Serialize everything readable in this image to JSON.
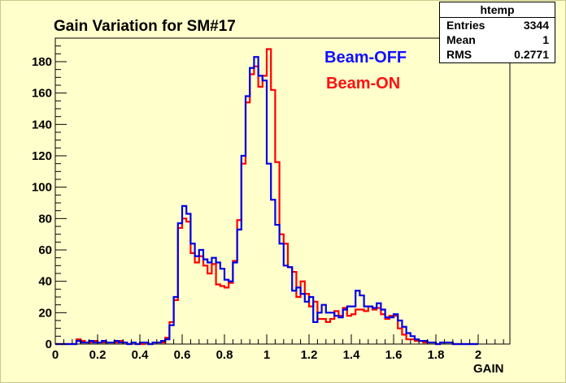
{
  "chart_data": {
    "type": "histogram",
    "title": "Gain Variation for SM#17",
    "xlabel": "GAIN",
    "ylabel": "",
    "xlim": [
      0.0,
      2.15
    ],
    "ylim": [
      0,
      195
    ],
    "x_ticks": [
      0,
      0.2,
      0.4,
      0.6,
      0.8,
      1,
      1.2,
      1.4,
      1.6,
      1.8,
      2
    ],
    "x_tick_labels": [
      "0",
      "0.2",
      "0.4",
      "0.6",
      "0.8",
      "1",
      "1.2",
      "1.4",
      "1.6",
      "1.8",
      "2"
    ],
    "y_ticks": [
      0,
      20,
      40,
      60,
      80,
      100,
      120,
      140,
      160,
      180
    ],
    "y_tick_labels": [
      "0",
      "20",
      "40",
      "60",
      "80",
      "100",
      "120",
      "140",
      "160",
      "180"
    ],
    "bin_start": 0.0,
    "bin_width": 0.02,
    "legend_position": "top-right",
    "series": [
      {
        "name": "Beam-OFF",
        "color": "#0000e6",
        "values": [
          0,
          0,
          0,
          0,
          0,
          2,
          1,
          1,
          2,
          1,
          1,
          2,
          1,
          1,
          2,
          1,
          1,
          0,
          1,
          0,
          1,
          1,
          0,
          1,
          1,
          2,
          3,
          12,
          30,
          77,
          88,
          83,
          64,
          56,
          60,
          54,
          52,
          55,
          52,
          48,
          41,
          40,
          52,
          73,
          120,
          158,
          176,
          183,
          171,
          168,
          115,
          92,
          76,
          64,
          50,
          49,
          34,
          36,
          32,
          27,
          30,
          14,
          20,
          25,
          20,
          20,
          18,
          17,
          22,
          24,
          24,
          34,
          31,
          24,
          24,
          23,
          26,
          22,
          17,
          17,
          19,
          15,
          11,
          7,
          5,
          3,
          2,
          2,
          1,
          1,
          0,
          1,
          1,
          1,
          0,
          0,
          0,
          0,
          0,
          0
        ],
        "visible_label": "Beam-OFF"
      },
      {
        "name": "Beam-ON",
        "color": "#ff0000",
        "values": [
          0,
          0,
          0,
          0,
          0,
          3,
          2,
          1,
          1,
          2,
          1,
          1,
          1,
          1,
          1,
          2,
          1,
          0,
          1,
          0,
          0,
          1,
          0,
          1,
          1,
          1,
          4,
          14,
          28,
          74,
          80,
          78,
          58,
          52,
          56,
          50,
          45,
          51,
          38,
          37,
          36,
          39,
          53,
          79,
          115,
          154,
          172,
          177,
          164,
          171,
          188,
          162,
          116,
          70,
          64,
          49,
          46,
          30,
          40,
          32,
          24,
          27,
          16,
          16,
          14,
          16,
          21,
          18,
          23,
          18,
          19,
          22,
          22,
          21,
          24,
          22,
          23,
          19,
          16,
          18,
          18,
          10,
          6,
          3,
          3,
          2,
          2,
          1,
          1,
          1,
          0,
          1,
          1,
          1,
          0,
          0,
          0,
          0,
          0,
          0
        ],
        "visible_label": "Beam-ON"
      }
    ]
  },
  "stats_box": {
    "name": "htemp",
    "rows": [
      {
        "label": "Entries",
        "value": "3344"
      },
      {
        "label": "Mean",
        "value": "1"
      },
      {
        "label": "RMS",
        "value": "0.2771"
      }
    ]
  },
  "colors": {
    "background": "#ffffcc",
    "plot_area": "#ffffcc",
    "off_legend": "#1010ff",
    "on_legend": "#ff1010"
  }
}
